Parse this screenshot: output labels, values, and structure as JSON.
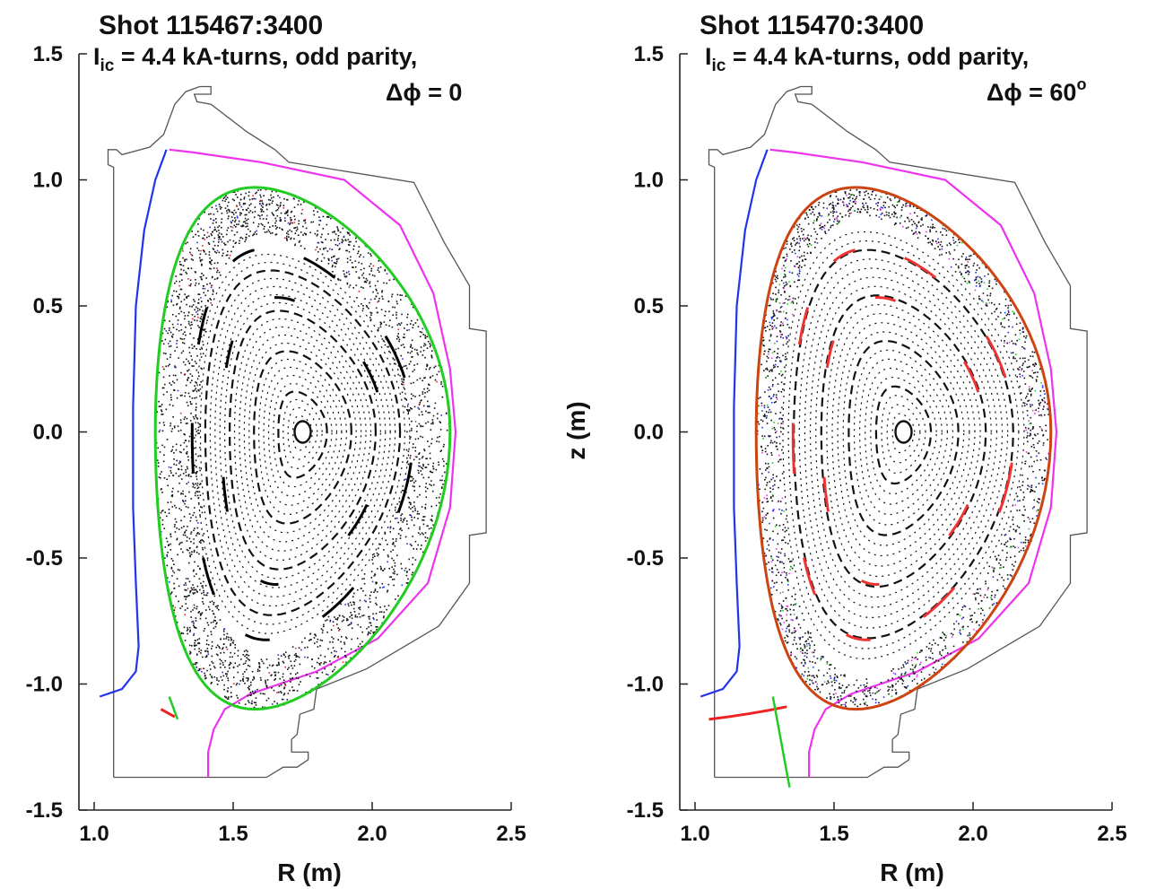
{
  "chart_data": [
    {
      "type": "scatter",
      "title": "Shot 115467:3400",
      "subtitle_line1_main": "I",
      "subtitle_line1_sub": "ic",
      "subtitle_line1_rest": " = 4.4 kA-turns, odd parity,",
      "subtitle_line2_main": "Δϕ = 0",
      "subtitle_line2_sup": "",
      "xlabel": "R (m)",
      "ylabel": "",
      "xlim": [
        0.95,
        2.5
      ],
      "ylim": [
        -1.5,
        1.5
      ],
      "xticks": [
        1.0,
        1.5,
        2.0,
        2.5
      ],
      "yticks": [
        1.5,
        1.0,
        0.5,
        0.0,
        -0.5,
        -1.0,
        -1.5
      ],
      "xtick_labels": [
        "1.0",
        "1.5",
        "2.0",
        "2.5"
      ],
      "ytick_labels": [
        "1.5",
        "1.0",
        "0.5",
        "0.0",
        "-0.5",
        "-1.0",
        "-1.5"
      ],
      "boundary_color": "#22cc22",
      "chaotic_extent": 0.3,
      "island_color": "#000000",
      "o_point": {
        "R": 1.75,
        "z": 0.0,
        "label": "O"
      },
      "colors": {
        "wall": "#555555",
        "blue_flux": "#2233ee",
        "magenta_flux": "#ee33ee",
        "green": "#22cc22",
        "red": "#ee2222",
        "orbits": "#111111"
      }
    },
    {
      "type": "scatter",
      "title": "Shot 115470:3400",
      "subtitle_line1_main": "I",
      "subtitle_line1_sub": "ic",
      "subtitle_line1_rest": " = 4.4 kA-turns, odd parity,",
      "subtitle_line2_main": "Δϕ = 60",
      "subtitle_line2_sup": "o",
      "xlabel": "R (m)",
      "ylabel": "z (m)",
      "xlim": [
        0.95,
        2.5
      ],
      "ylim": [
        -1.5,
        1.5
      ],
      "xticks": [
        1.0,
        1.5,
        2.0,
        2.5
      ],
      "yticks": [
        1.5,
        1.0,
        0.5,
        0.0,
        -0.5,
        -1.0,
        -1.5
      ],
      "xtick_labels": [
        "1.0",
        "1.5",
        "2.0",
        "2.5"
      ],
      "ytick_labels": [
        "1.5",
        "1.0",
        "0.5",
        "0.0",
        "-0.5",
        "-1.0",
        "-1.5"
      ],
      "boundary_color": "#cc4411",
      "chaotic_extent": 0.18,
      "island_color": "#ee3333",
      "o_point": {
        "R": 1.75,
        "z": 0.0,
        "label": "O"
      },
      "colors": {
        "wall": "#555555",
        "blue_flux": "#2233ee",
        "magenta_flux": "#ee33ee",
        "green": "#22cc22",
        "red": "#ee2222",
        "orbits": "#111111"
      }
    }
  ]
}
